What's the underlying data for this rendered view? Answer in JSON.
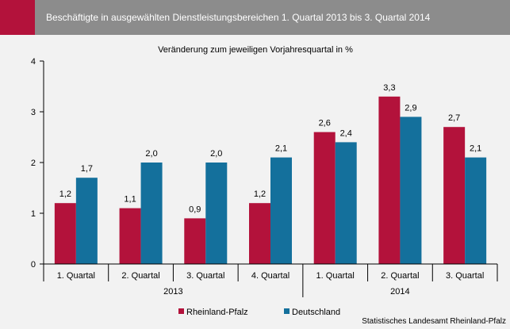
{
  "header": {
    "title": "Beschäftigte in ausgewählten Dienstleistungsbereichen 1. Quartal 2013 bis 3. Quartal 2014"
  },
  "source": "Statistisches Landesamt Rheinland-Pfalz",
  "colors": {
    "accent": "#b3123b",
    "header_bg": "#8c8c8c",
    "panel_bg": "#f2f2f2",
    "series_rlp": "#b3123b",
    "series_de": "#14709c"
  },
  "chart_data": {
    "type": "bar",
    "title": "Veränderung zum jeweiligen Vorjahresquartal in %",
    "categories": [
      "1. Quartal",
      "2. Quartal",
      "3. Quartal",
      "4. Quartal",
      "1. Quartal",
      "2. Quartal",
      "3. Quartal"
    ],
    "groups": [
      {
        "label": "2013",
        "span": 4
      },
      {
        "label": "2014",
        "span": 3
      }
    ],
    "series": [
      {
        "name": "Rheinland-Pfalz",
        "values": [
          1.2,
          1.1,
          0.9,
          1.2,
          2.6,
          3.3,
          2.7
        ],
        "labels": [
          "1,2",
          "1,1",
          "0,9",
          "1,2",
          "2,6",
          "3,3",
          "2,7"
        ],
        "color": "#b3123b"
      },
      {
        "name": "Deutschland",
        "values": [
          1.7,
          2.0,
          2.0,
          2.1,
          2.4,
          2.9,
          2.1
        ],
        "labels": [
          "1,7",
          "2,0",
          "2,0",
          "2,1",
          "2,4",
          "2,9",
          "2,1"
        ],
        "color": "#14709c"
      }
    ],
    "ylim": [
      0,
      4
    ],
    "yticks": [
      0,
      1,
      2,
      3,
      4
    ],
    "ytick_labels": [
      "0",
      "1",
      "2",
      "3",
      "4"
    ],
    "grid": false,
    "legend": "bottom-left"
  }
}
